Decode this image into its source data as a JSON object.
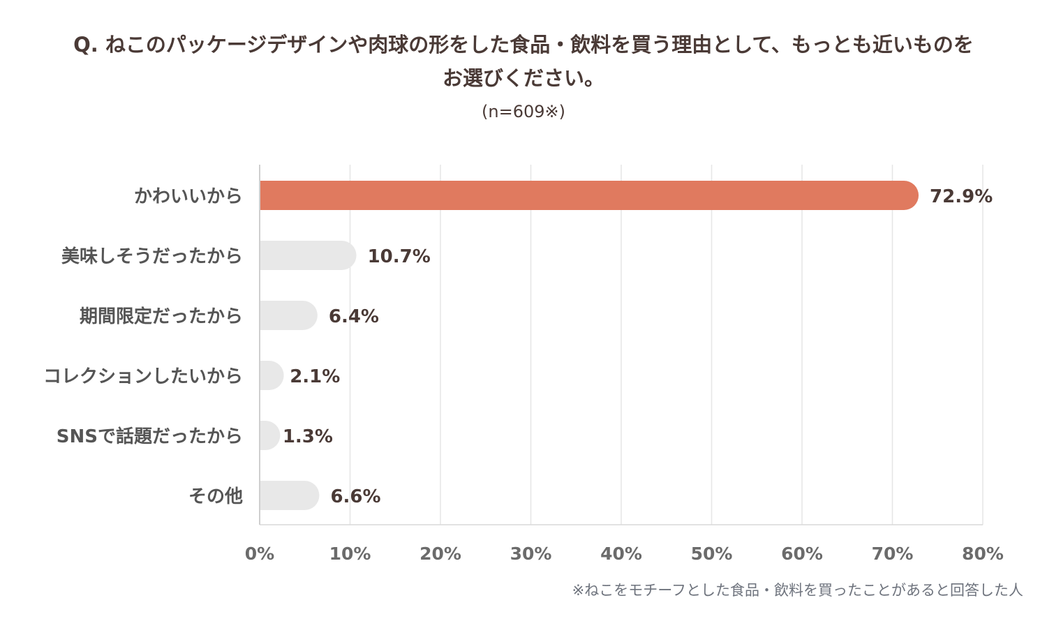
{
  "title_lines": [
    "Q. ねこのパッケージデザインや肉球の形をした食品・飲料を買う理由として、もっとも近いものを",
    "お選びください。"
  ],
  "sample_note": "(n=609※)",
  "footnote": "※ねこをモチーフとした食品・飲料を買ったことがあると回答した人",
  "colors": {
    "highlight_bar": "#e07a5f",
    "other_bar": "#e8e8e8",
    "grid": "#e6e6e6",
    "category_text": "#555555",
    "value_text": "#4a3a36",
    "tick_text": "#6b6b6b"
  },
  "chart_data": {
    "type": "bar",
    "orientation": "horizontal",
    "categories": [
      "かわいいから",
      "美味しそうだったから",
      "期間限定だったから",
      "コレクションしたいから",
      "SNSで話題だったから",
      "その他"
    ],
    "values": [
      72.9,
      10.7,
      6.4,
      2.1,
      1.3,
      6.6
    ],
    "value_labels": [
      "72.9%",
      "10.7%",
      "6.4%",
      "2.1%",
      "1.3%",
      "6.6%"
    ],
    "xlim": [
      0,
      80
    ],
    "x_ticks": [
      0,
      10,
      20,
      30,
      40,
      50,
      60,
      70,
      80
    ],
    "x_tick_labels": [
      "0%",
      "10%",
      "20%",
      "30%",
      "40%",
      "50%",
      "60%",
      "70%",
      "80%"
    ],
    "highlight_index": 0,
    "grid": true
  }
}
